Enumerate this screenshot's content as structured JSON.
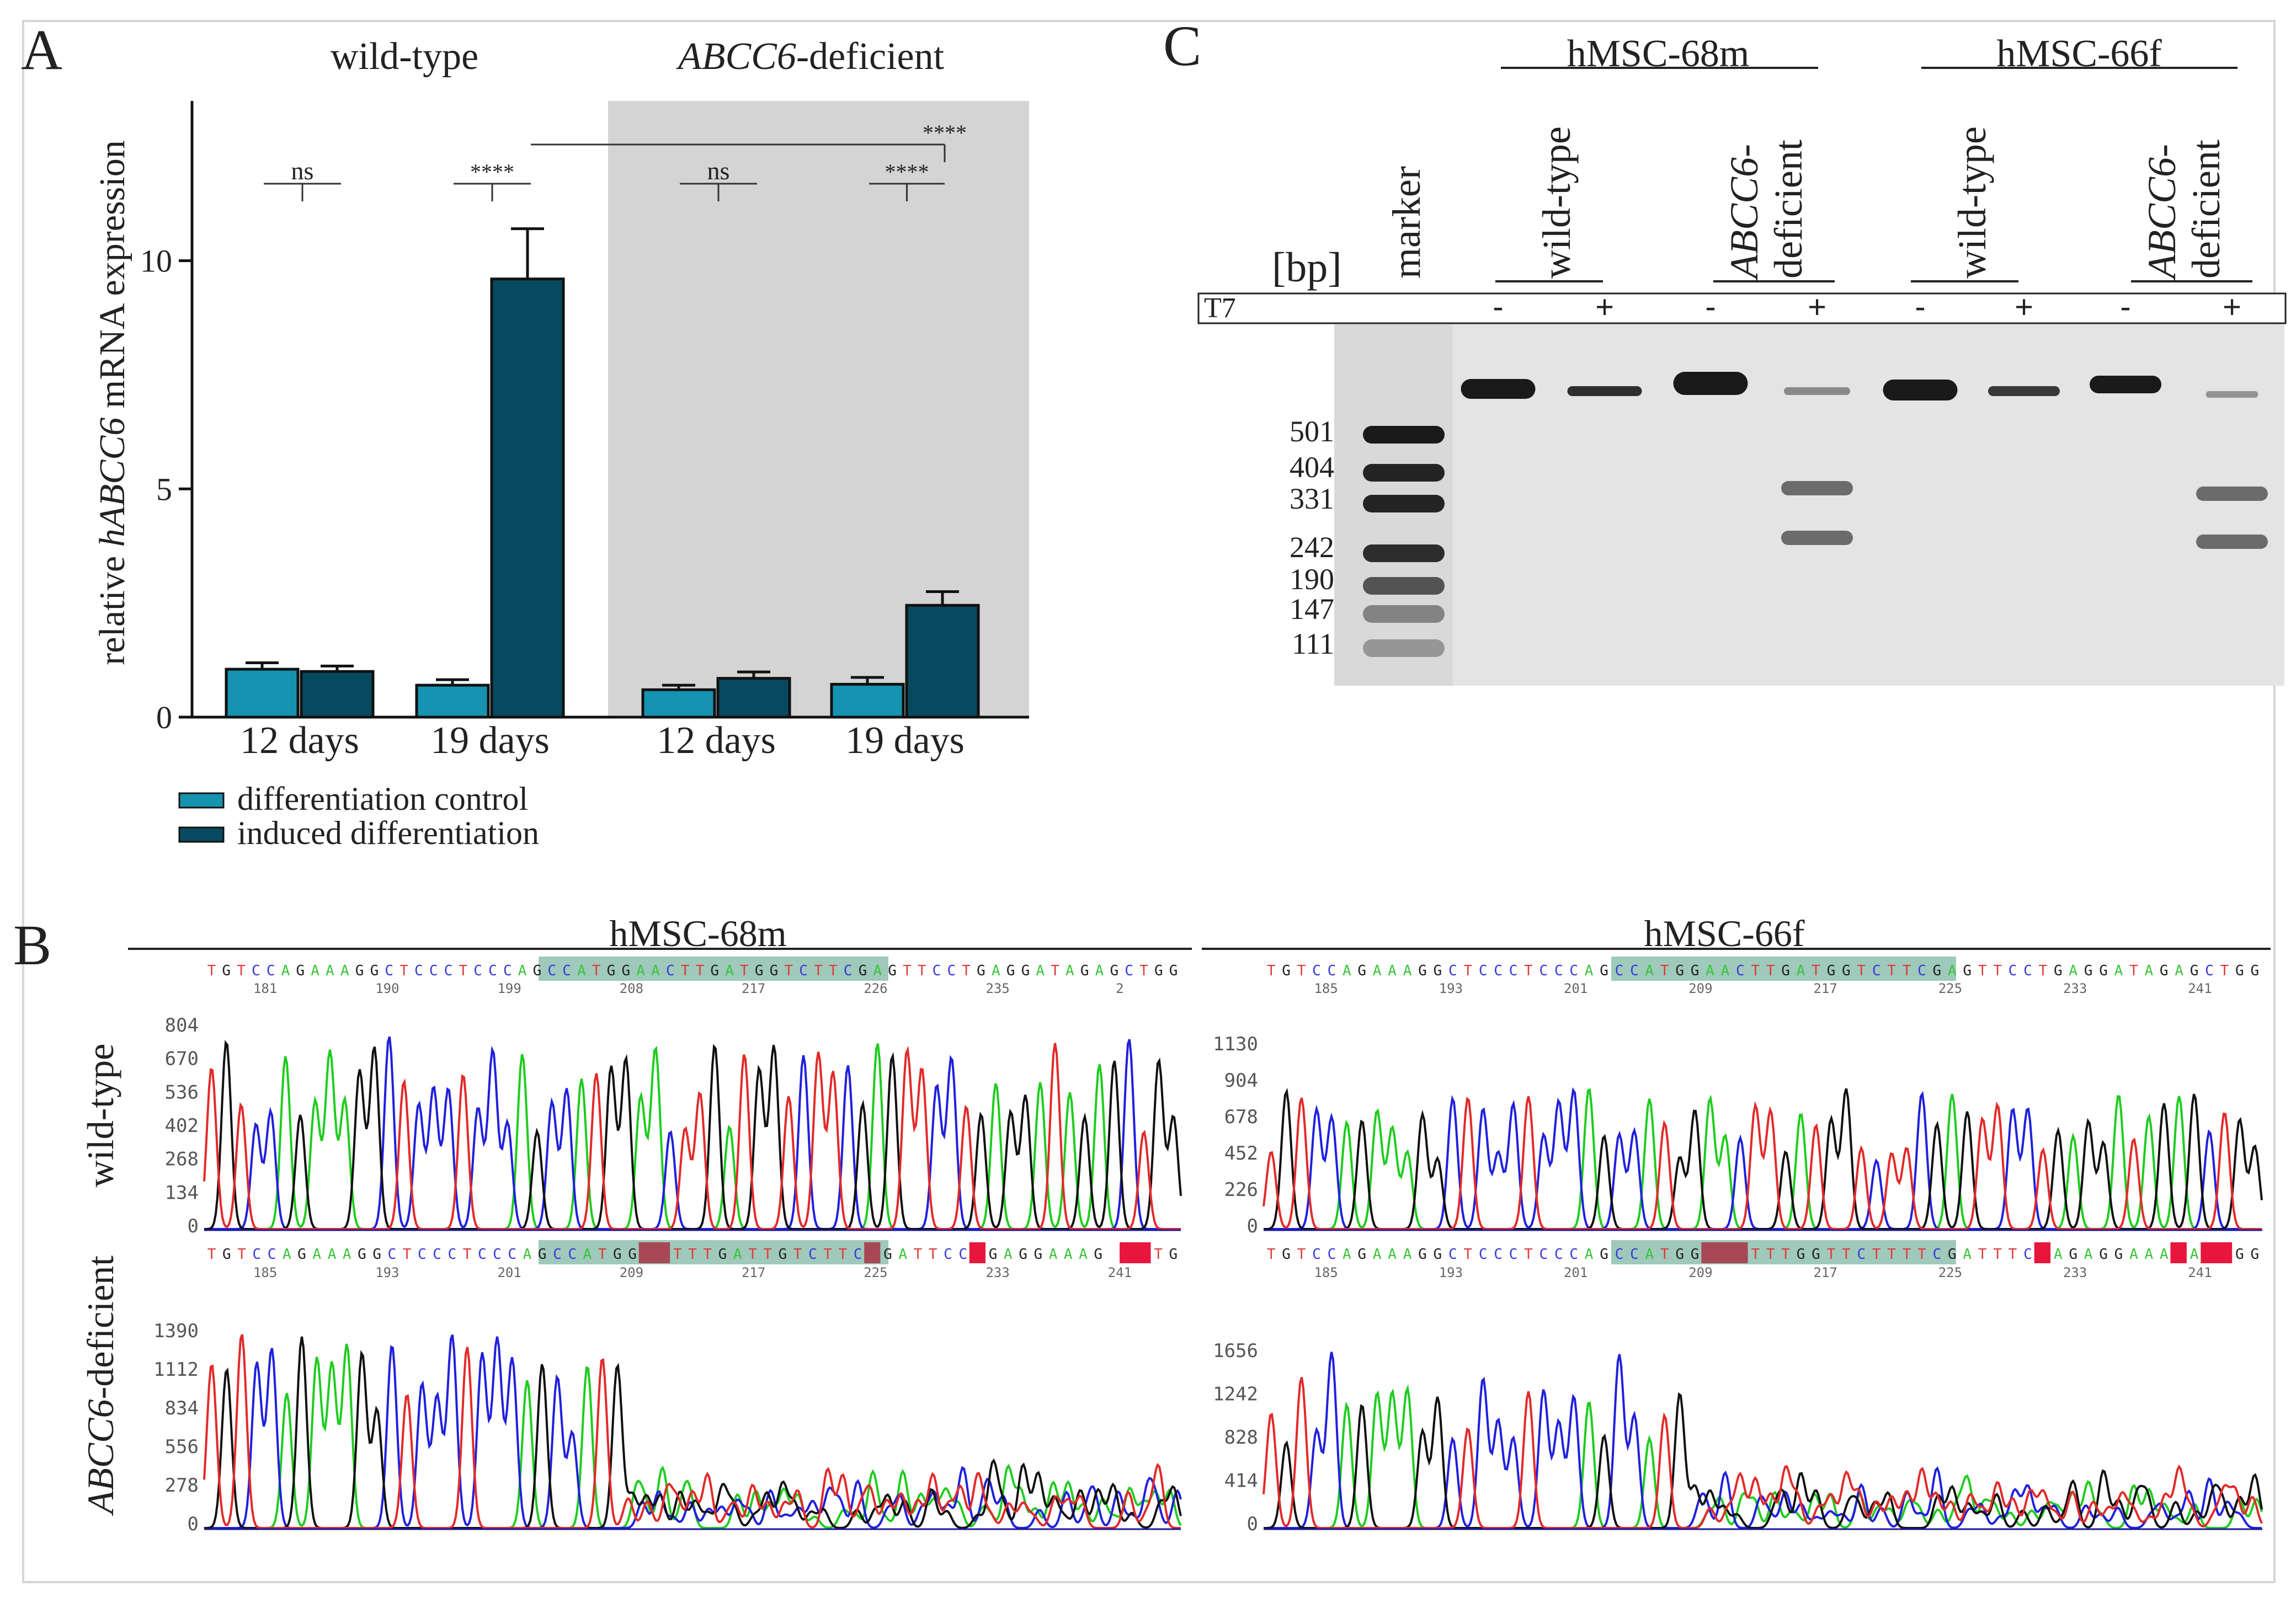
{
  "colors": {
    "control": "#1593b0",
    "induced": "#074a60",
    "shade": "#d4d4d4",
    "gel_bg": "#e4e4e4",
    "band": "#1a1a1a",
    "trace_A": "#1fcc1f",
    "trace_C": "#2020dd",
    "trace_G": "#111111",
    "trace_T": "#e22a2a",
    "highlight": "#7fb7a4",
    "mismatch_dark": "#a84856",
    "mismatch_red": "#e8163c"
  },
  "panel_labels": {
    "a": "A",
    "b": "B",
    "c": "C"
  },
  "panelA": {
    "group_titles": {
      "wt": "wild-type",
      "def_italic": "ABCC6",
      "def_rest": "-deficient"
    },
    "ylabel_pre": "relative ",
    "ylabel_italic": "hABCC6",
    "ylabel_post": " mRNA expression",
    "legend": [
      "differentiation control",
      "induced differentiation"
    ],
    "chart_data": {
      "type": "bar",
      "categories": [
        "12 days",
        "19 days",
        "12 days",
        "19 days"
      ],
      "groups": [
        "wild-type",
        "ABCC6-deficient"
      ],
      "series": [
        {
          "name": "differentiation control",
          "values": [
            1.05,
            0.7,
            0.6,
            0.72
          ],
          "errors": [
            0.14,
            0.12,
            0.1,
            0.15
          ]
        },
        {
          "name": "induced differentiation",
          "values": [
            1.0,
            9.6,
            0.85,
            2.45
          ],
          "errors": [
            0.12,
            1.1,
            0.14,
            0.3
          ]
        }
      ],
      "ylim": [
        0,
        13.5
      ],
      "yticks": [
        0,
        5,
        10
      ],
      "ylabel": "relative hABCC6 mRNA expression",
      "significance": [
        {
          "label": "ns",
          "pair": "wild-type 12 days"
        },
        {
          "label": "****",
          "pair": "wild-type 19 days"
        },
        {
          "label": "ns",
          "pair": "ABCC6-deficient 12 days"
        },
        {
          "label": "****",
          "pair": "ABCC6-deficient 19 days"
        },
        {
          "label": "****",
          "pair": "wild-type vs ABCC6-deficient 19 days induced"
        }
      ]
    }
  },
  "panelB": {
    "titles": [
      "hMSC-68m",
      "hMSC-66f"
    ],
    "row_labels": {
      "wt": "wild-type",
      "def_italic": "ABCC6",
      "def_rest": "-deficient"
    },
    "wt68": {
      "seq": "TGTCCAGAAAGGCTCCCTCCCAGCCATGGAACTTGATGGTCTTCGAGTTCCTGAGGATAGAGCTGG",
      "numbers": [
        "181",
        "190",
        "199",
        "208",
        "217",
        "226",
        "235",
        "2"
      ],
      "yticks": [
        "804",
        "670",
        "536",
        "402",
        "268",
        "134",
        "0"
      ]
    },
    "wt66": {
      "seq": "TGTCCAGAAAGGCTCCCTCCCAGCCATGGAACTTGATGGTCTTCGAGTTCCTGAGGATAGAGCTGG",
      "numbers": [
        "185",
        "193",
        "201",
        "209",
        "217",
        "225",
        "233",
        "241"
      ],
      "yticks": [
        "1130",
        "904",
        "678",
        "452",
        "226",
        "0"
      ]
    },
    "def68": {
      "seq": "TGTCCAGAAAGGCTCCCTCCCAGCCATGGNNTTTGATTGTCTTCNGATTCCNGAGGAAAGNNNTG",
      "numbers": [
        "185",
        "193",
        "201",
        "209",
        "217",
        "225",
        "233",
        "241"
      ],
      "yticks": [
        "1390",
        "1112",
        "834",
        "556",
        "278",
        "0"
      ]
    },
    "def66": {
      "seq": "TGTCCAGAAAGGCTCCCTCCCAGCCATGGNNNTTTGGTTCTTTTCGATTTCNAGAGGAAANANNGG",
      "numbers": [
        "185",
        "193",
        "201",
        "209",
        "217",
        "225",
        "233",
        "241"
      ],
      "yticks": [
        "1656",
        "1242",
        "828",
        "414",
        "0"
      ]
    }
  },
  "panelC": {
    "donors": [
      "hMSC-68m",
      "hMSC-66f"
    ],
    "marker": "marker",
    "bp": "[bp]",
    "lane_wt": "wild-type",
    "lane_def_italic": "ABCC6-",
    "lane_def_rest": "deficient",
    "t7": "T7",
    "t7_signs": [
      "-",
      "+",
      "-",
      "+",
      "-",
      "+",
      "-",
      "+"
    ],
    "sizes": [
      "501",
      "404",
      "331",
      "242",
      "190",
      "147",
      "111"
    ]
  }
}
